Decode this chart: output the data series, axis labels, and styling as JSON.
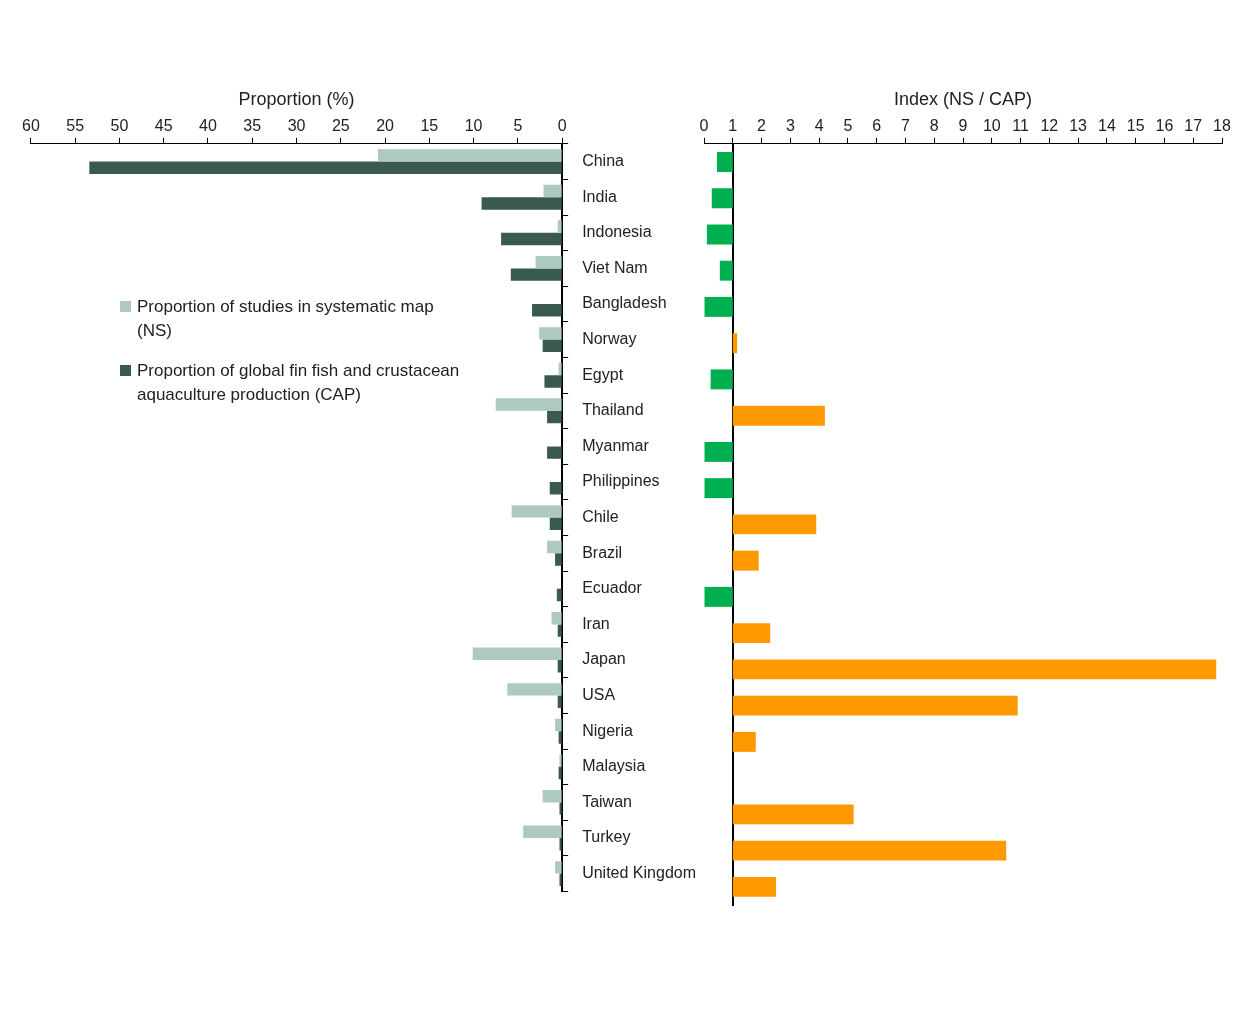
{
  "chart_data": [
    {
      "type": "bar",
      "orientation": "horizontal",
      "xlabel": "Proportion (%)",
      "xlim": [
        60,
        0
      ],
      "xticks": [
        60,
        55,
        50,
        45,
        40,
        35,
        30,
        25,
        20,
        15,
        10,
        5,
        0
      ],
      "legend": "left",
      "categories": [
        "China",
        "India",
        "Indonesia",
        "Viet Nam",
        "Bangladesh",
        "Norway",
        "Egypt",
        "Thailand",
        "Myanmar",
        "Philippines",
        "Chile",
        "Brazil",
        "Ecuador",
        "Iran",
        "Japan",
        "USA",
        "Nigeria",
        "Malaysia",
        "Taiwan",
        "Turkey",
        "United Kingdom"
      ],
      "series": [
        {
          "name": "Proportion of studies in systematic map (NS)",
          "color": "#adc9c0",
          "values": [
            20.8,
            2.1,
            0.5,
            3.0,
            0,
            2.6,
            0.4,
            7.5,
            0,
            0,
            5.7,
            1.7,
            0,
            1.2,
            10.1,
            6.2,
            0.8,
            0.3,
            2.2,
            4.4,
            0.8
          ]
        },
        {
          "name": "Proportion of global fin fish and crustacean aquaculture production (CAP)",
          "color": "#3a5a50",
          "values": [
            53.4,
            9.1,
            6.9,
            5.8,
            3.4,
            2.2,
            2.0,
            1.7,
            1.7,
            1.4,
            1.4,
            0.8,
            0.6,
            0.5,
            0.5,
            0.5,
            0.4,
            0.4,
            0.3,
            0.3,
            0.3
          ]
        }
      ]
    },
    {
      "type": "bar",
      "orientation": "horizontal",
      "xlabel": "Index (NS / CAP)",
      "xlim": [
        0,
        18
      ],
      "xticks": [
        0,
        1,
        2,
        3,
        4,
        5,
        6,
        7,
        8,
        9,
        10,
        11,
        12,
        13,
        14,
        15,
        16,
        17,
        18
      ],
      "tick_labels": "x",
      "categories": [
        null,
        null,
        null,
        null,
        null,
        null,
        null,
        null,
        null,
        null,
        null,
        null,
        null,
        null,
        null,
        null,
        null,
        null,
        null,
        null,
        null
      ],
      "base": [
        1,
        1,
        1,
        1,
        1,
        1,
        1,
        1,
        1,
        1,
        1,
        1,
        1,
        1,
        1,
        1,
        1,
        null,
        1,
        1,
        1
      ],
      "values": [
        -0.55,
        -0.73,
        -0.9,
        -0.45,
        -1,
        0.15,
        -0.77,
        3.2,
        -1,
        -1,
        2.9,
        0.9,
        -1,
        1.3,
        16.8,
        9.9,
        0.8,
        null,
        4.2,
        9.5,
        1.5
      ],
      "colors": [
        "#00b050",
        "#00b050",
        "#00b050",
        "#00b050",
        "#00b050",
        "#ff9900",
        "#00b050",
        "#ff9900",
        "#00b050",
        "#00b050",
        "#ff9900",
        "#ff9900",
        "#00b050",
        "#ff9900",
        "#ff9900",
        "#ff9900",
        "#ff9900",
        "#ff9900",
        "#ff9900",
        "#ff9900",
        "#ff9900"
      ]
    }
  ]
}
